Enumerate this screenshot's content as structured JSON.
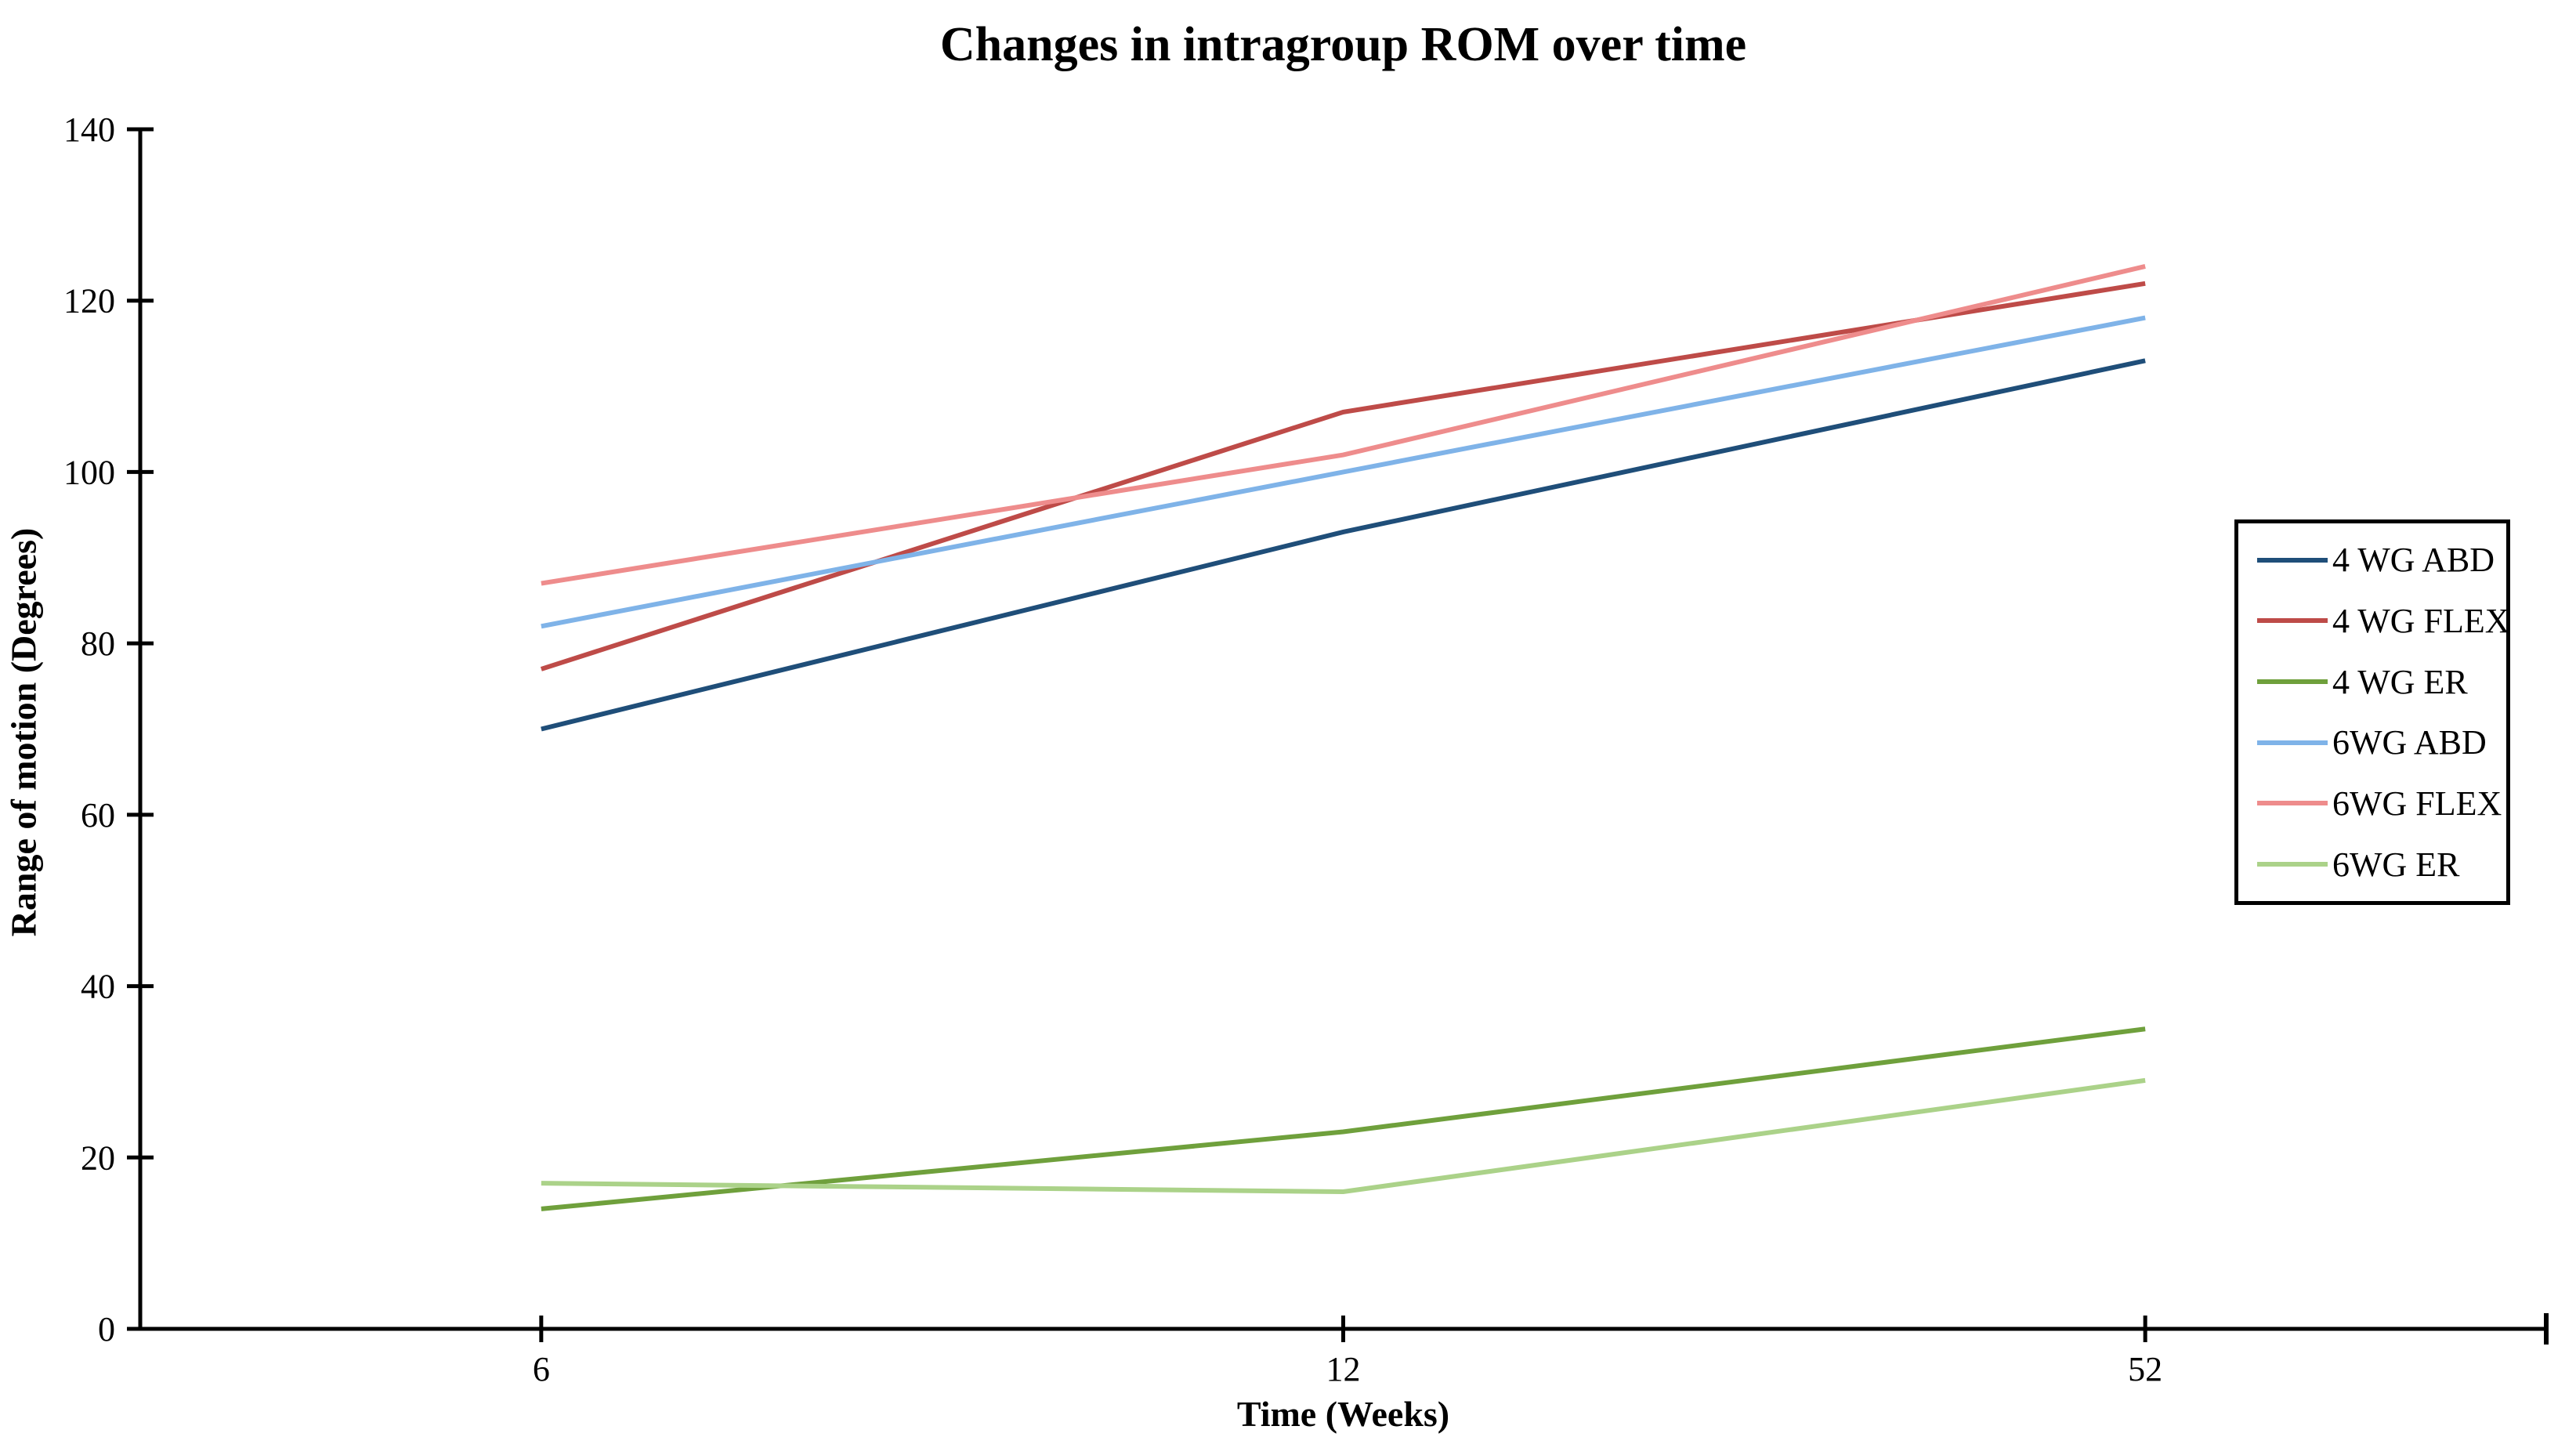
{
  "chart_data": {
    "type": "line",
    "title": "Changes in intragroup ROM over time",
    "xlabel": "Time (Weeks)",
    "ylabel": "Range of motion (Degrees)",
    "categories": [
      "6",
      "12",
      "52"
    ],
    "y_ticks": [
      0,
      20,
      40,
      60,
      80,
      100,
      120,
      140
    ],
    "ylim": [
      0,
      140
    ],
    "grid": false,
    "legend_position": "right",
    "axis_color": "#000000",
    "background_color": "#ffffff",
    "series": [
      {
        "name": "4 WG ABD",
        "color": "#1F4E79",
        "values": [
          70,
          93,
          113
        ]
      },
      {
        "name": "4 WG FLEX",
        "color": "#BE4B48",
        "values": [
          77,
          107,
          122
        ]
      },
      {
        "name": "4 WG ER",
        "color": "#6FA03C",
        "values": [
          14,
          23,
          35
        ]
      },
      {
        "name": "6WG ABD",
        "color": "#7FB3E8",
        "values": [
          82,
          100,
          118
        ]
      },
      {
        "name": "6WG FLEX",
        "color": "#EE8C8C",
        "values": [
          87,
          102,
          124
        ]
      },
      {
        "name": "6WG ER",
        "color": "#ABD289",
        "values": [
          17,
          16,
          29
        ]
      }
    ]
  }
}
